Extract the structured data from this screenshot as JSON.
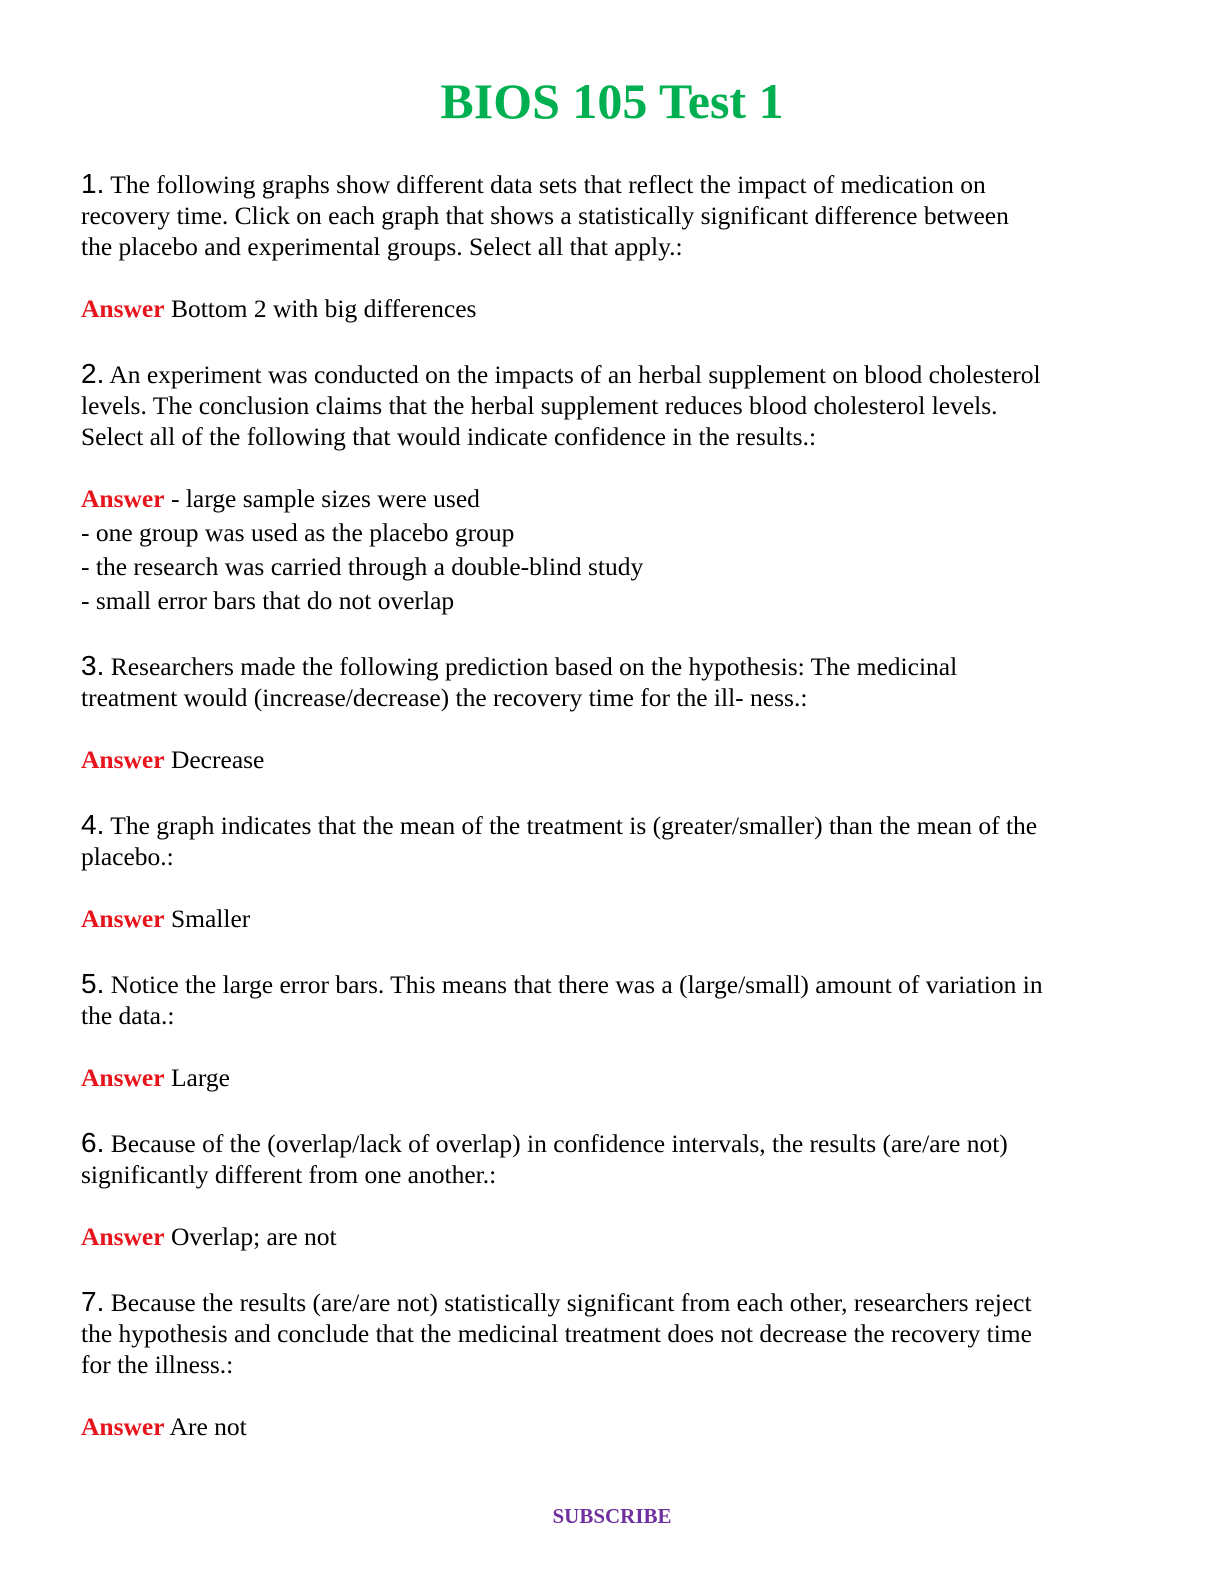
{
  "header": {
    "title": "BIOS 105 Test 1"
  },
  "questions": [
    {
      "number": "1.",
      "lines": [
        "The following graphs show different data sets that reflect the impact of medication on",
        "recovery time. Click on each graph that shows a statistically significant difference between",
        "the placebo and experimental groups. Select all that apply.:"
      ],
      "answer_label": "Answer",
      "answer": [
        "Bottom 2 with big differences"
      ]
    },
    {
      "number": "2.",
      "lines": [
        "An experiment was conducted on the impacts of an herbal supplement on blood cholesterol",
        "levels. The conclusion claims that the herbal supplement reduces blood cholesterol levels.",
        "Select all of the following that would indicate confidence in the results.:"
      ],
      "answer_label": "Answer",
      "answer": [
        "- large sample sizes were used",
        "- one group was used as the placebo group",
        "- the research was carried through a double-blind study",
        "- small error bars that do not overlap"
      ]
    },
    {
      "number": "3.",
      "lines": [
        "Researchers made the following prediction based on the hypothesis: The medicinal",
        "treatment would (increase/decrease) the recovery time for the ill- ness.:"
      ],
      "answer_label": "Answer",
      "answer": [
        "Decrease"
      ]
    },
    {
      "number": "4.",
      "lines": [
        "The graph indicates that the mean of the treatment is (greater/smaller) than the mean of the",
        "placebo.:"
      ],
      "answer_label": "Answer",
      "answer": [
        "Smaller"
      ]
    },
    {
      "number": "5.",
      "lines": [
        "Notice the large error bars. This means that there was a (large/small) amount of variation in",
        "the data.:"
      ],
      "answer_label": "Answer",
      "answer": [
        "Large"
      ]
    },
    {
      "number": "6.",
      "lines": [
        "Because of the (overlap/lack of overlap) in confidence intervals, the results (are/are not)",
        "significantly different from one another.:"
      ],
      "answer_label": "Answer",
      "answer": [
        "Overlap; are not"
      ]
    },
    {
      "number": "7.",
      "lines": [
        "Because the results (are/are not) statistically significant from each other, researchers reject",
        "the hypothesis and conclude that the medicinal treatment does not decrease the recovery time",
        "for the illness.:"
      ],
      "answer_label": "Answer",
      "answer": [
        "Are not"
      ]
    }
  ],
  "footer": {
    "link": "SUBSCRIBE"
  }
}
